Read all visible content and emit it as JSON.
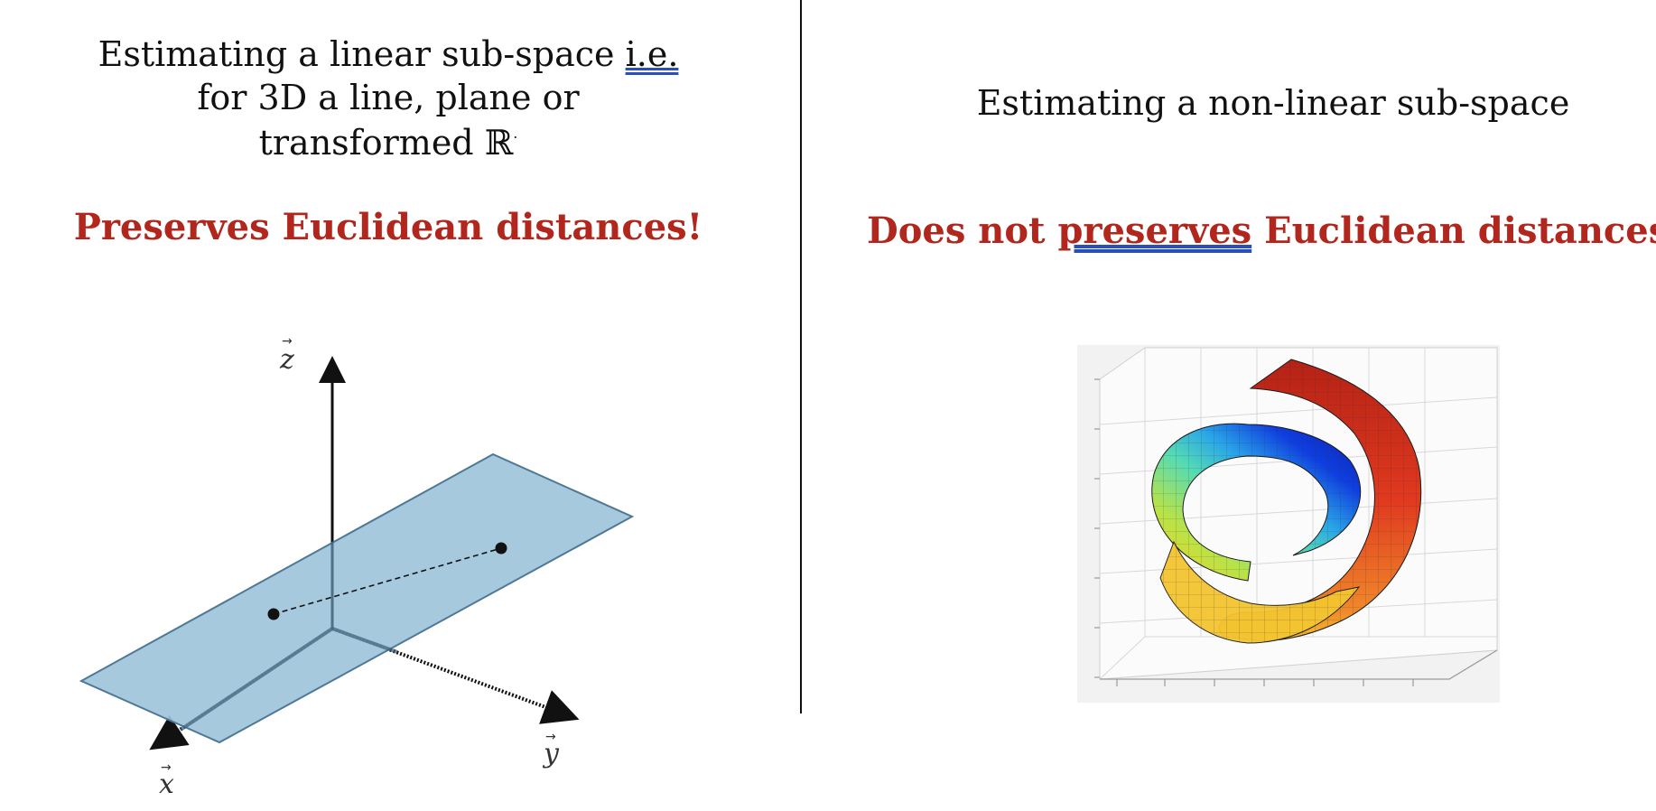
{
  "left": {
    "title_line1_prefix": "Estimating a linear sub-space ",
    "title_line1_ie": "i.e.",
    "title_line2": "for 3D a line, plane or",
    "title_line3": "transformed ℝ",
    "emphasis": "Preserves Euclidean distances!",
    "axis_z": "z",
    "axis_x": "x",
    "axis_y": "y",
    "colors": {
      "plane": "#9ec4da",
      "plane_edge": "#4f7896",
      "emphasis": "#b1271d"
    }
  },
  "right": {
    "title": "Estimating a non-linear sub-space",
    "emphasis_prefix": "Does not ",
    "emphasis_underlined": "preserves",
    "emphasis_suffix": " Euclidean distances!",
    "colors": {
      "emphasis": "#b1271d"
    }
  }
}
